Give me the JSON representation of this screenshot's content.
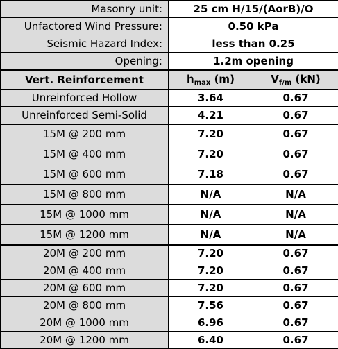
{
  "info": [
    {
      "label": "Masonry unit:",
      "value": "25 cm H/15/(AorB)/O"
    },
    {
      "label": "Unfactored Wind Pressure:",
      "value": "0.50 kPa"
    },
    {
      "label": "Seismic Hazard Index:",
      "value": "less than 0.25"
    },
    {
      "label": "Opening:",
      "value": "1.2m opening"
    }
  ],
  "header": {
    "col1": "Vert. Reinforcement",
    "col2_main": "h",
    "col2_sub": "max",
    "col2_unit": " (m)",
    "col3_main": "V",
    "col3_sub": "f/m",
    "col3_unit": " (kN)"
  },
  "rows": [
    {
      "name": "Unreinforced Hollow",
      "h": "3.64",
      "v": "0.67"
    },
    {
      "name": "Unreinforced Semi-Solid",
      "h": "4.21",
      "v": "0.67"
    },
    {
      "name": "15M @ 200 mm",
      "h": "7.20",
      "v": "0.67"
    },
    {
      "name": "15M @ 400 mm",
      "h": "7.20",
      "v": "0.67"
    },
    {
      "name": "15M @ 600 mm",
      "h": "7.18",
      "v": "0.67"
    },
    {
      "name": "15M @ 800 mm",
      "h": "N/A",
      "v": "N/A"
    },
    {
      "name": "15M @ 1000 mm",
      "h": "N/A",
      "v": "N/A"
    },
    {
      "name": "15M @ 1200 mm",
      "h": "N/A",
      "v": "N/A"
    },
    {
      "name": "20M @ 200 mm",
      "h": "7.20",
      "v": "0.67"
    },
    {
      "name": "20M @ 400 mm",
      "h": "7.20",
      "v": "0.67"
    },
    {
      "name": "20M @ 600 mm",
      "h": "7.20",
      "v": "0.67"
    },
    {
      "name": "20M @ 800 mm",
      "h": "7.56",
      "v": "0.67"
    },
    {
      "name": "20M @ 1000 mm",
      "h": "6.96",
      "v": "0.67"
    },
    {
      "name": "20M @ 1200 mm",
      "h": "6.40",
      "v": "0.67"
    }
  ]
}
